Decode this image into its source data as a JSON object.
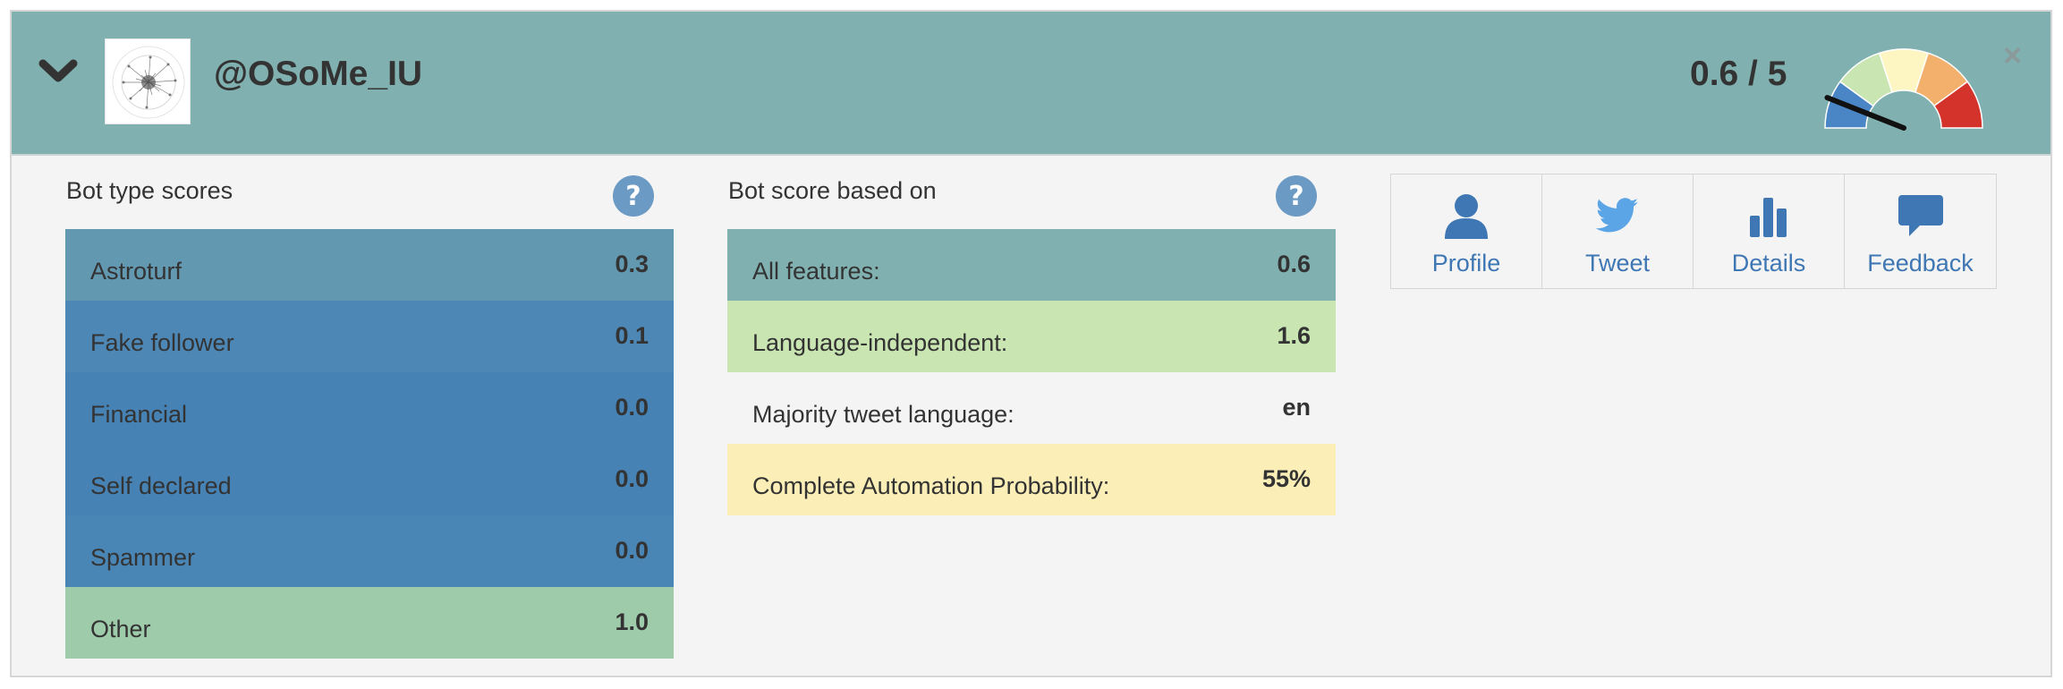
{
  "header": {
    "handle": "@OSoMe_IU",
    "score": "0.6 / 5",
    "close_symbol": "×"
  },
  "bot_type": {
    "title": "Bot type scores",
    "rows": [
      {
        "label": "Astroturf",
        "value": "0.3",
        "color": "#6398b1"
      },
      {
        "label": "Fake follower",
        "value": "0.1",
        "color": "#4d87b5"
      },
      {
        "label": "Financial",
        "value": "0.0",
        "color": "#4682b4"
      },
      {
        "label": "Self declared",
        "value": "0.0",
        "color": "#4682b4"
      },
      {
        "label": "Spammer",
        "value": "0.0",
        "color": "#4a86b5"
      },
      {
        "label": "Other",
        "value": "1.0",
        "color": "#9ecbaa"
      }
    ]
  },
  "bot_score": {
    "title": "Bot score based on",
    "rows": [
      {
        "label": "All features:",
        "value": "0.6",
        "color": "#80b1b0"
      },
      {
        "label": "Language-independent:",
        "value": "1.6",
        "color": "#c9e6b2"
      },
      {
        "label": "Majority tweet language:",
        "value": "en",
        "color": "#f4f4f4"
      },
      {
        "label": "Complete Automation Probability:",
        "value": "55%",
        "color": "#fbefb7"
      }
    ]
  },
  "actions": [
    {
      "label": "Profile",
      "icon": "user-icon"
    },
    {
      "label": "Tweet",
      "icon": "twitter-bird-icon"
    },
    {
      "label": "Details",
      "icon": "bar-chart-icon"
    },
    {
      "label": "Feedback",
      "icon": "speech-bubble-icon"
    }
  ],
  "gauge": {
    "value": 0.6,
    "max": 5,
    "segment_colors": [
      "#4a86c5",
      "#c9e6b2",
      "#fdf6c3",
      "#f3b06c",
      "#d4332b"
    ]
  },
  "colors": {
    "header_bg": "#80b1b0",
    "help_icon": "#6b9ac4",
    "link": "#3e77b3"
  }
}
